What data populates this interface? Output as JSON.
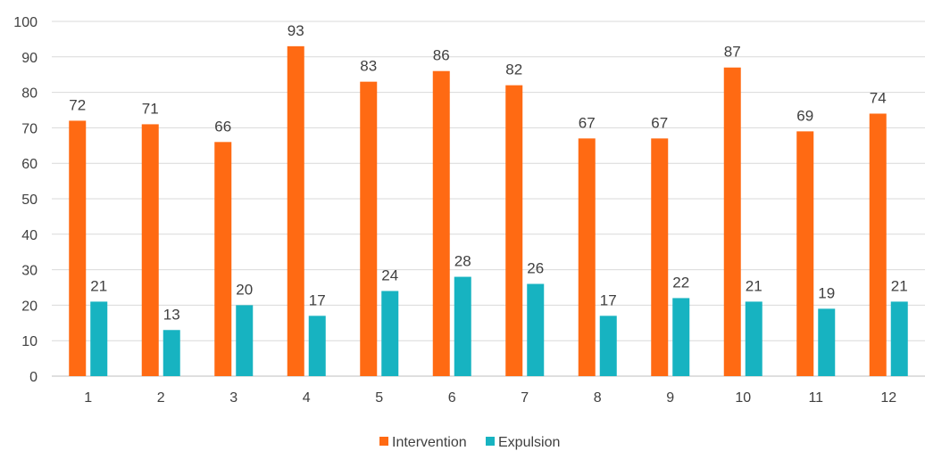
{
  "chart_data": {
    "type": "bar",
    "title": "",
    "xlabel": "",
    "ylabel": "",
    "categories": [
      "1",
      "2",
      "3",
      "4",
      "5",
      "6",
      "7",
      "8",
      "9",
      "10",
      "11",
      "12"
    ],
    "series": [
      {
        "name": "Intervention",
        "color": "#FF6A13",
        "values": [
          72,
          71,
          66,
          93,
          83,
          86,
          82,
          67,
          67,
          87,
          69,
          74
        ]
      },
      {
        "name": "Expulsion",
        "color": "#17B3C1",
        "values": [
          21,
          13,
          20,
          17,
          24,
          28,
          26,
          17,
          22,
          21,
          19,
          21
        ]
      }
    ],
    "ylim": [
      0,
      100
    ],
    "yticks": [
      0,
      10,
      20,
      30,
      40,
      50,
      60,
      70,
      80,
      90,
      100
    ],
    "grid": true,
    "legend_position": "bottom"
  }
}
